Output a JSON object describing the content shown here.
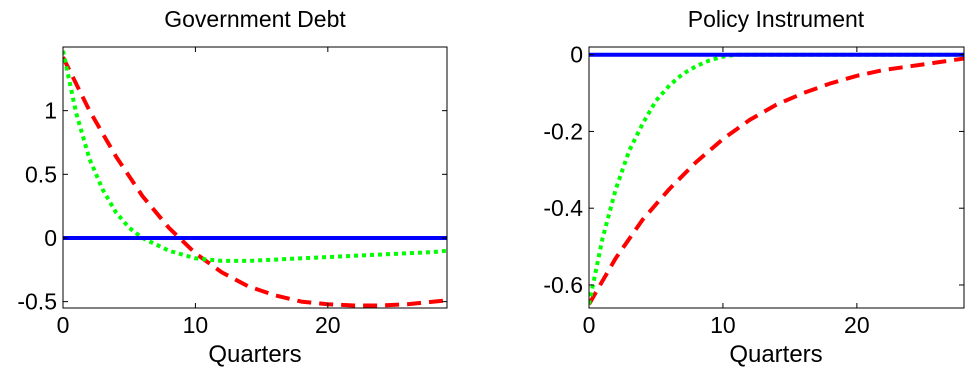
{
  "colors": {
    "series_solid": "#0000ff",
    "series_dashed": "#ff0000",
    "series_dotted": "#00ff00"
  },
  "chart_data": [
    {
      "type": "line",
      "title": "Government Debt",
      "xlabel": "Quarters",
      "ylabel": "",
      "xlim": [
        0,
        29
      ],
      "ylim": [
        -0.55,
        1.5
      ],
      "xticks": [
        0,
        10,
        20
      ],
      "yticks": [
        -0.5,
        0,
        0.5,
        1
      ],
      "xtick_labels": [
        "0",
        "10",
        "20"
      ],
      "ytick_labels": [
        "-0.5",
        "0",
        "0.5",
        "1"
      ],
      "grid": false,
      "series": [
        {
          "style": "solid",
          "color": "#0000ff",
          "x": [
            0,
            29
          ],
          "y": [
            0,
            0
          ]
        },
        {
          "style": "dashed",
          "color": "#ff0000",
          "x": [
            0,
            2,
            4,
            6,
            8,
            10,
            12,
            14,
            16,
            18,
            20,
            22,
            24,
            26,
            28,
            29
          ],
          "y": [
            1.42,
            1.0,
            0.64,
            0.33,
            0.08,
            -0.12,
            -0.27,
            -0.38,
            -0.45,
            -0.5,
            -0.52,
            -0.53,
            -0.53,
            -0.52,
            -0.5,
            -0.49
          ]
        },
        {
          "style": "dotted",
          "color": "#00ff00",
          "x": [
            0,
            1,
            2,
            3,
            4,
            5,
            6,
            8,
            10,
            12,
            14,
            16,
            18,
            20,
            22,
            24,
            26,
            28,
            29
          ],
          "y": [
            1.47,
            0.98,
            0.62,
            0.38,
            0.2,
            0.08,
            0.0,
            -0.1,
            -0.16,
            -0.18,
            -0.18,
            -0.17,
            -0.16,
            -0.15,
            -0.14,
            -0.13,
            -0.12,
            -0.11,
            -0.1
          ]
        }
      ]
    },
    {
      "type": "line",
      "title": "Policy Instrument",
      "xlabel": "Quarters",
      "ylabel": "",
      "xlim": [
        0,
        28
      ],
      "ylim": [
        -0.66,
        0.02
      ],
      "xticks": [
        0,
        10,
        20
      ],
      "yticks": [
        -0.6,
        -0.4,
        -0.2,
        0
      ],
      "xtick_labels": [
        "0",
        "10",
        "20"
      ],
      "ytick_labels": [
        "-0.6",
        "-0.4",
        "-0.2",
        "0"
      ],
      "grid": false,
      "series": [
        {
          "style": "solid",
          "color": "#0000ff",
          "x": [
            0,
            28
          ],
          "y": [
            0,
            0
          ]
        },
        {
          "style": "dashed",
          "color": "#ff0000",
          "x": [
            0,
            2,
            4,
            6,
            8,
            10,
            12,
            14,
            16,
            18,
            20,
            22,
            24,
            26,
            28
          ],
          "y": [
            -0.65,
            -0.53,
            -0.43,
            -0.35,
            -0.28,
            -0.22,
            -0.17,
            -0.13,
            -0.1,
            -0.075,
            -0.055,
            -0.04,
            -0.03,
            -0.02,
            -0.01
          ]
        },
        {
          "style": "dotted",
          "color": "#00ff00",
          "x": [
            0,
            1,
            2,
            3,
            4,
            5,
            6,
            7,
            8,
            9,
            10,
            11,
            12,
            14,
            16,
            20,
            24,
            28
          ],
          "y": [
            -0.65,
            -0.48,
            -0.35,
            -0.25,
            -0.18,
            -0.12,
            -0.08,
            -0.05,
            -0.03,
            -0.015,
            -0.005,
            0.0,
            0.0,
            0.0,
            0.0,
            0.0,
            0.0,
            0.0
          ]
        }
      ]
    }
  ]
}
